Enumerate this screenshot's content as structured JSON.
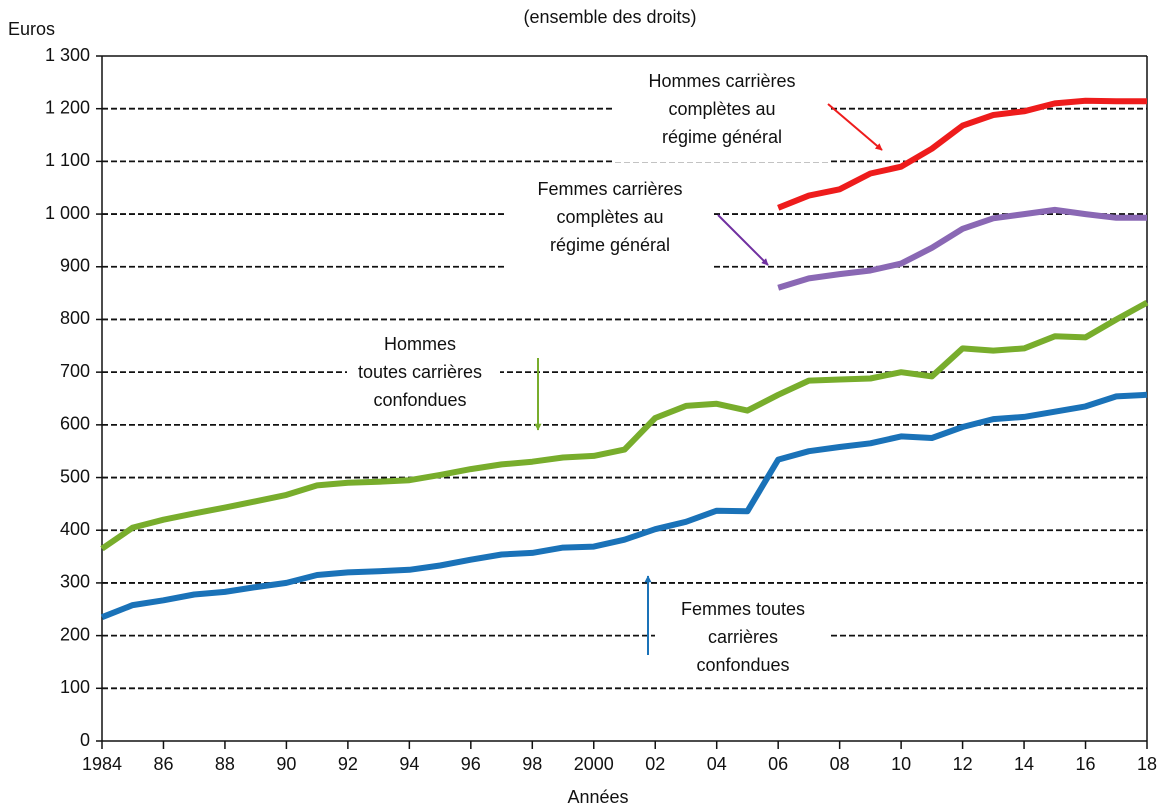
{
  "chart_data": {
    "type": "line",
    "title": "(ensemble des droits)",
    "y_label": "Euros",
    "x_label": "Années",
    "x": [
      1984,
      1985,
      1986,
      1987,
      1988,
      1989,
      1990,
      1991,
      1992,
      1993,
      1994,
      1995,
      1996,
      1997,
      1998,
      1999,
      2000,
      2001,
      2002,
      2003,
      2004,
      2005,
      2006,
      2007,
      2008,
      2009,
      2010,
      2011,
      2012,
      2013,
      2014,
      2015,
      2016,
      2017,
      2018
    ],
    "xlim": [
      1984,
      2018
    ],
    "xticks": [
      {
        "value": 1984,
        "label": "1984"
      },
      {
        "value": 1986,
        "label": "86"
      },
      {
        "value": 1988,
        "label": "88"
      },
      {
        "value": 1990,
        "label": "90"
      },
      {
        "value": 1992,
        "label": "92"
      },
      {
        "value": 1994,
        "label": "94"
      },
      {
        "value": 1996,
        "label": "96"
      },
      {
        "value": 1998,
        "label": "98"
      },
      {
        "value": 2000,
        "label": "2000"
      },
      {
        "value": 2002,
        "label": "02"
      },
      {
        "value": 2004,
        "label": "04"
      },
      {
        "value": 2006,
        "label": "06"
      },
      {
        "value": 2008,
        "label": "08"
      },
      {
        "value": 2010,
        "label": "10"
      },
      {
        "value": 2012,
        "label": "12"
      },
      {
        "value": 2014,
        "label": "14"
      },
      {
        "value": 2016,
        "label": "16"
      },
      {
        "value": 2018,
        "label": "18"
      }
    ],
    "ylim": [
      0,
      1300
    ],
    "yticks": [
      0,
      100,
      200,
      300,
      400,
      500,
      600,
      700,
      800,
      900,
      {
        "value": 1000,
        "label": "1 000"
      },
      {
        "value": 1100,
        "label": "1 100"
      },
      {
        "value": 1200,
        "label": "1 200"
      },
      {
        "value": 1300,
        "label": "1 300"
      }
    ],
    "grid": true,
    "series": [
      {
        "name": "Femmes toutes carrières confondues",
        "color": "#1a72b8",
        "values": [
          235,
          258,
          267,
          278,
          283,
          292,
          300,
          315,
          320,
          322,
          325,
          333,
          344,
          354,
          357,
          367,
          369,
          382,
          402,
          416,
          437,
          436,
          534,
          550,
          558,
          565,
          578,
          575,
          596,
          611,
          615,
          625,
          635,
          654,
          657
        ]
      },
      {
        "name": "Hommes toutes carrières confondues",
        "color": "#78ad2c",
        "values": [
          365,
          405,
          420,
          432,
          443,
          455,
          467,
          485,
          490,
          492,
          495,
          505,
          516,
          525,
          530,
          538,
          541,
          553,
          613,
          636,
          640,
          627,
          657,
          684,
          686,
          688,
          700,
          692,
          745,
          741,
          745,
          768,
          766,
          800,
          832
        ]
      },
      {
        "name": "Hommes carrières complètes au régime général",
        "color": "#ee1c1c",
        "values": [
          null,
          null,
          null,
          null,
          null,
          null,
          null,
          null,
          null,
          null,
          null,
          null,
          null,
          null,
          null,
          null,
          null,
          null,
          null,
          null,
          null,
          null,
          1012,
          1035,
          1047,
          1077,
          1090,
          1124,
          1168,
          1188,
          1195,
          1210,
          1215,
          1214,
          1214
        ]
      },
      {
        "name": "Femmes carrières complètes au régime général",
        "color": "#8a68b4",
        "values": [
          null,
          null,
          null,
          null,
          null,
          null,
          null,
          null,
          null,
          null,
          null,
          null,
          null,
          null,
          null,
          null,
          null,
          null,
          null,
          null,
          null,
          null,
          860,
          878,
          886,
          893,
          906,
          936,
          972,
          992,
          1000,
          1008,
          1000,
          993,
          993
        ]
      }
    ],
    "annotations": [
      {
        "lines": [
          "Hommes carrières",
          "complètes au",
          "régime général"
        ],
        "color": "#ee1c1c"
      },
      {
        "lines": [
          "Femmes carrières",
          "complètes au",
          "régime général"
        ],
        "color": "#7030a0"
      },
      {
        "lines": [
          "Hommes",
          "toutes carrières",
          "confondues"
        ],
        "color": "#78ad2c"
      },
      {
        "lines": [
          "Femmes toutes",
          "carrières",
          "confondues"
        ],
        "color": "#1a72b8"
      }
    ]
  }
}
